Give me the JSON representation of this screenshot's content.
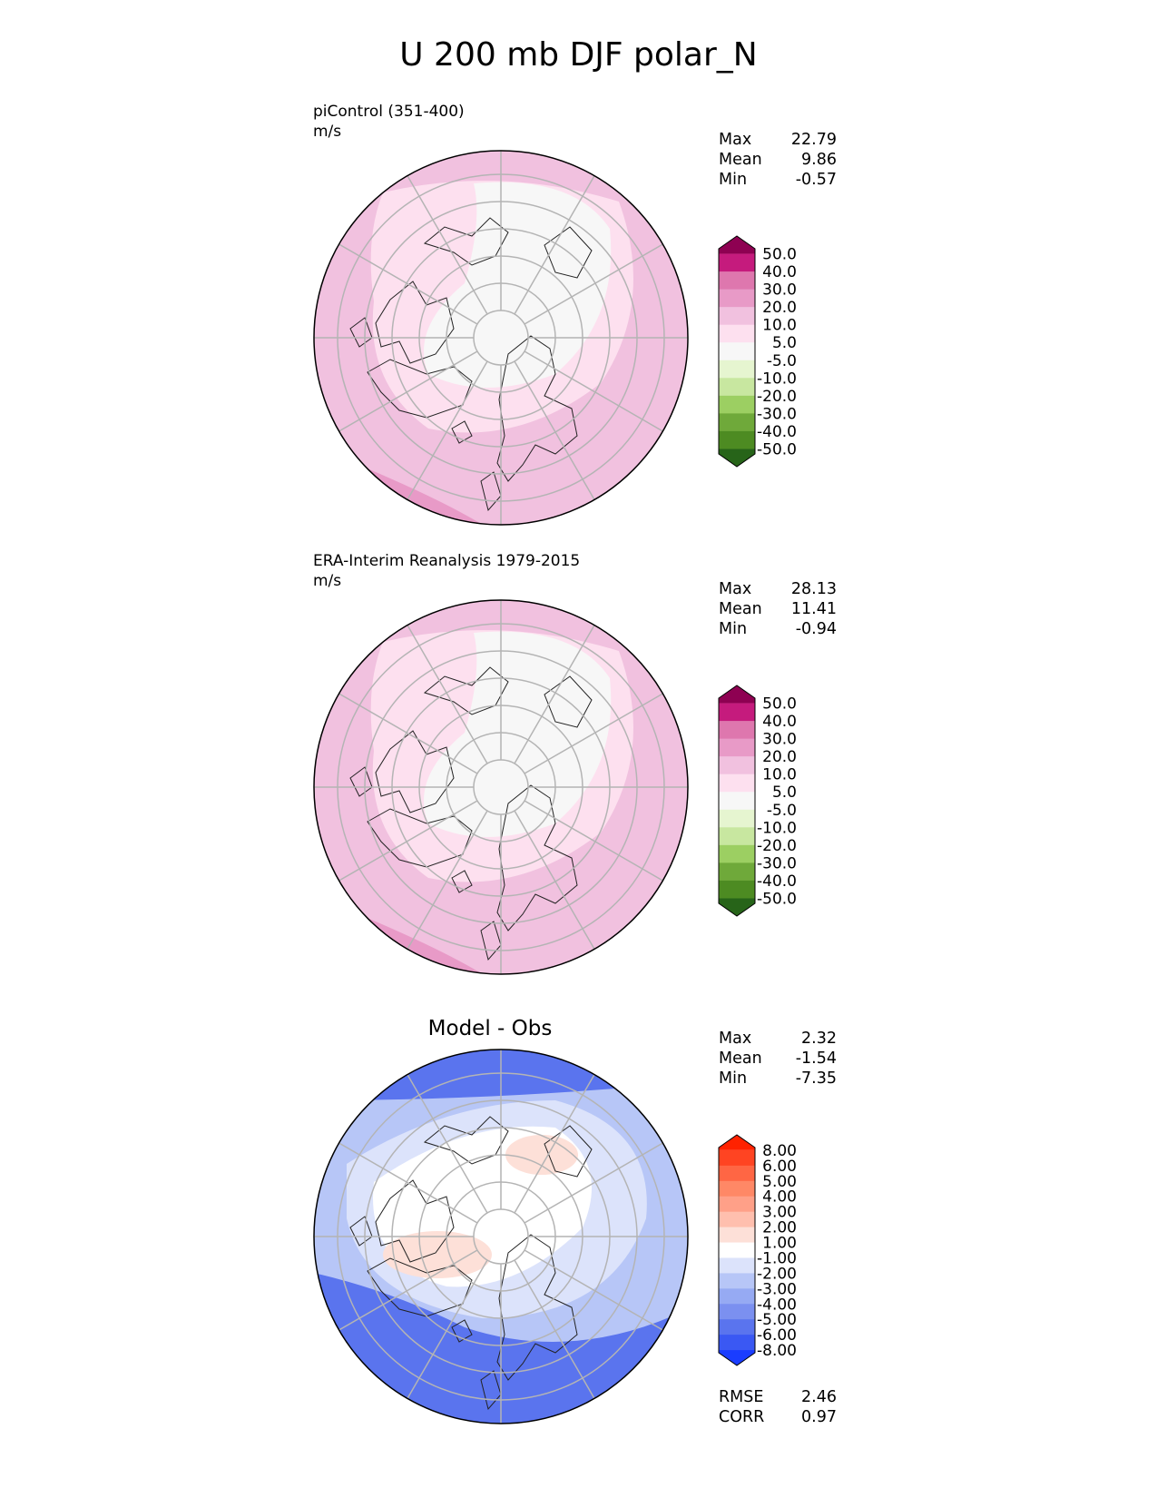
{
  "figure": {
    "title": "U 200 mb DJF polar_N"
  },
  "panels": [
    {
      "id": "model",
      "caption_line1": "piControl (351-400)",
      "caption_line2": "m/s",
      "subtitle": "",
      "stats": [
        {
          "label": "Max",
          "value": "22.79"
        },
        {
          "label": "Mean",
          "value": "9.86"
        },
        {
          "label": "Min",
          "value": "-0.57"
        }
      ],
      "footer_stats": [],
      "colorbar": {
        "ticks": [
          "50.0",
          "40.0",
          "30.0",
          "20.0",
          "10.0",
          "5.0",
          "-5.0",
          "-10.0",
          "-20.0",
          "-30.0",
          "-40.0",
          "-50.0"
        ],
        "colors": [
          "#8e0152",
          "#c51b7d",
          "#de77ae",
          "#e89ac7",
          "#f1c1df",
          "#fde0ef",
          "#f7f7f7",
          "#e6f5d0",
          "#c8e7a0",
          "#9ccf62",
          "#6fa93a",
          "#4d8b22",
          "#276419"
        ]
      },
      "map": {
        "background": "#f1c1df",
        "accent": "#e89ac7",
        "light": "#fde0ef",
        "core": "#f7f7f7"
      }
    },
    {
      "id": "obs",
      "caption_line1": "ERA-Interim Reanalysis 1979-2015",
      "caption_line2": "m/s",
      "subtitle": "",
      "stats": [
        {
          "label": "Max",
          "value": "28.13"
        },
        {
          "label": "Mean",
          "value": "11.41"
        },
        {
          "label": "Min",
          "value": "-0.94"
        }
      ],
      "footer_stats": [],
      "colorbar": {
        "ticks": [
          "50.0",
          "40.0",
          "30.0",
          "20.0",
          "10.0",
          "5.0",
          "-5.0",
          "-10.0",
          "-20.0",
          "-30.0",
          "-40.0",
          "-50.0"
        ],
        "colors": [
          "#8e0152",
          "#c51b7d",
          "#de77ae",
          "#e89ac7",
          "#f1c1df",
          "#fde0ef",
          "#f7f7f7",
          "#e6f5d0",
          "#c8e7a0",
          "#9ccf62",
          "#6fa93a",
          "#4d8b22",
          "#276419"
        ]
      },
      "map": {
        "background": "#f1c1df",
        "accent": "#e89ac7",
        "light": "#fde0ef",
        "core": "#f7f7f7"
      }
    },
    {
      "id": "diff",
      "caption_line1": "",
      "caption_line2": "",
      "subtitle": "Model - Obs",
      "stats": [
        {
          "label": "Max",
          "value": "2.32"
        },
        {
          "label": "Mean",
          "value": "-1.54"
        },
        {
          "label": "Min",
          "value": "-7.35"
        }
      ],
      "footer_stats": [
        {
          "label": "RMSE",
          "value": "2.46"
        },
        {
          "label": "CORR",
          "value": "0.97"
        }
      ],
      "colorbar": {
        "ticks": [
          "8.00",
          "6.00",
          "5.00",
          "4.00",
          "3.00",
          "2.00",
          "1.00",
          "-1.00",
          "-2.00",
          "-3.00",
          "-4.00",
          "-5.00",
          "-6.00",
          "-8.00"
        ],
        "colors": [
          "#ff2200",
          "#ff4422",
          "#ff6644",
          "#ff8866",
          "#ffa088",
          "#ffbfae",
          "#fde0d8",
          "#ffffff",
          "#dce3fb",
          "#b7c6f7",
          "#96aaf3",
          "#7b90f0",
          "#5a74ee",
          "#3a58f3",
          "#1a3dff"
        ]
      },
      "map": {
        "background": "#b7c6f7",
        "accent": "#5a74ee",
        "light": "#dce3fb",
        "core": "#ffffff",
        "warm": "#fde0d8"
      }
    }
  ]
}
